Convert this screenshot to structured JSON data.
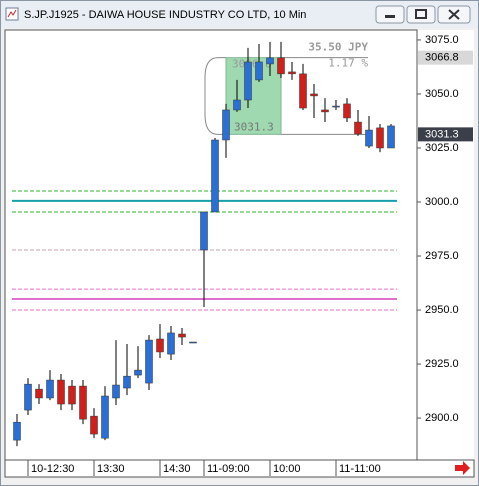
{
  "chart_data": {
    "type": "candlestick",
    "title": "S.JP.J1925 - DAIWA HOUSE INDUSTRY CO LTD, 10 Min",
    "categories": [
      null,
      "10-12:30",
      null,
      null,
      null,
      null,
      null,
      "13:30",
      null,
      null,
      null,
      null,
      null,
      "14:30",
      null,
      null,
      null,
      "11-09:00",
      null,
      null,
      null,
      null,
      null,
      "10:00",
      null,
      null,
      null,
      null,
      null,
      "11-11:00",
      null,
      null,
      null,
      null,
      null
    ],
    "open": [
      2889.8,
      2903.7,
      2913.4,
      2909.3,
      2917.6,
      2914.8,
      2914.8,
      2900.9,
      2890.7,
      2909.3,
      2913.9,
      2919.9,
      2916.2,
      2936.6,
      2929.6,
      2938.9,
      2935.2,
      2977.8,
      2995.4,
      3028.7,
      3042.6,
      3047.2,
      3056.5,
      3063.9,
      3066.7,
      3060.2,
      3059.3,
      3050.0,
      3042.6,
      3044.4,
      3045.4,
      3037.0,
      3025.9,
      3034.3,
      3025.0
    ],
    "high": [
      2901.9,
      2918.5,
      2915.7,
      2922.2,
      2920.4,
      2917.6,
      2917.6,
      2904.6,
      2914.8,
      2936.1,
      2934.3,
      2933.3,
      2938.4,
      2943.5,
      2942.6,
      2941.7,
      2935.2,
      2995.4,
      3029.6,
      3045.4,
      3056.5,
      3071.3,
      3073.1,
      3074.1,
      3074.1,
      3064.8,
      3063.9,
      3054.6,
      3048.1,
      3047.2,
      3048.1,
      3042.6,
      3039.8,
      3036.1,
      3036.1
    ],
    "low": [
      2887.0,
      2901.4,
      2906.5,
      2908.3,
      2903.7,
      2903.7,
      2897.2,
      2890.7,
      2889.8,
      2906.0,
      2910.6,
      2918.5,
      2913.0,
      2927.8,
      2926.9,
      2933.8,
      2935.2,
      2951.4,
      2995.4,
      3020.4,
      3041.7,
      3043.5,
      3055.6,
      3058.3,
      3057.4,
      3056.5,
      3042.6,
      3038.9,
      3037.0,
      3042.6,
      3037.0,
      3030.6,
      3025.0,
      3023.1,
      3025.0
    ],
    "close": [
      2898.1,
      2915.7,
      2909.3,
      2917.6,
      2906.5,
      2906.5,
      2899.5,
      2892.6,
      2910.2,
      2915.3,
      2919.4,
      2922.2,
      2936.1,
      2930.6,
      2939.4,
      2937.5,
      2935.2,
      2995.4,
      3028.7,
      3042.6,
      3047.2,
      3064.8,
      3064.8,
      3066.7,
      3059.3,
      3059.3,
      3043.5,
      3049.1,
      3041.7,
      3044.4,
      3038.9,
      3031.5,
      3033.3,
      3025.0,
      3035.2
    ],
    "up_color": "#2a6fd6",
    "down_color": "#d0201c",
    "ylim": [
      2880.6,
      3079.6
    ],
    "yticks": [
      {
        "value": 3075,
        "label": "3075.0"
      },
      {
        "value": 3050,
        "label": "3050.0"
      },
      {
        "value": 3025,
        "label": "3025.0"
      },
      {
        "value": 3000,
        "label": "3000.0"
      },
      {
        "value": 2975,
        "label": "2975.0"
      },
      {
        "value": 2950,
        "label": "2950.0"
      },
      {
        "value": 2925,
        "label": "2925.0"
      },
      {
        "value": 2900,
        "label": "2900.0"
      }
    ],
    "levels": [
      {
        "value": 3005.1,
        "color": "#2db52d",
        "style": "dashed"
      },
      {
        "value": 3000.5,
        "color": "#16a0a8",
        "style": "solid"
      },
      {
        "value": 2995.4,
        "color": "#2db52d",
        "style": "dashed"
      },
      {
        "value": 2977.8,
        "color": "#c8a0b0",
        "style": "dashed"
      },
      {
        "value": 2959.7,
        "color": "#e070d0",
        "style": "dashed"
      },
      {
        "value": 2955.1,
        "color": "#e070d0",
        "style": "solid"
      },
      {
        "value": 2950.0,
        "color": "#e070d0",
        "style": "dashed"
      }
    ],
    "price_labels": [
      3066.8,
      3031.3
    ],
    "measure": {
      "from": 3031.3,
      "to": 3066.8,
      "change_label": "35.50 JPY",
      "percent_label": "1.17 %"
    }
  }
}
